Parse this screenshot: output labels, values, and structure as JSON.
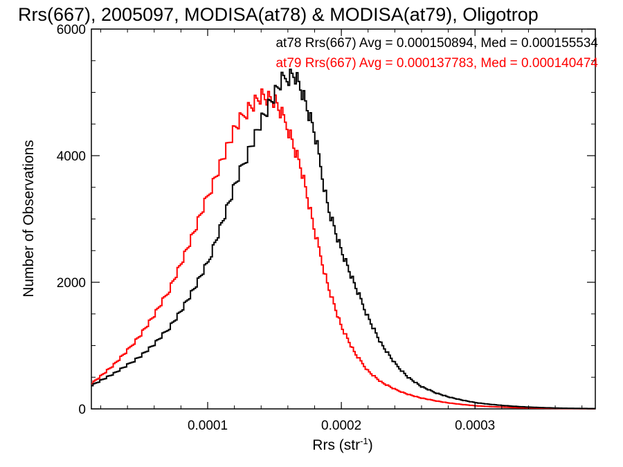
{
  "chart_data": {
    "type": "histogram",
    "title": "Rrs(667), 2005097, MODISA(at78) & MODISA(at79), Oligotrop",
    "xlabel": "Rrs (str",
    "xlabel_sup": "-1",
    "xlabel_close": ")",
    "ylabel": "Number of Observations",
    "xlim": [
      1.3e-05,
      0.00039
    ],
    "ylim": [
      0,
      6000
    ],
    "xticks": [
      {
        "value": 0.0001,
        "label": "0.0001"
      },
      {
        "value": 0.0002,
        "label": "0.0002"
      },
      {
        "value": 0.0003,
        "label": "0.0003"
      }
    ],
    "yticks": [
      {
        "value": 0,
        "label": "0"
      },
      {
        "value": 2000,
        "label": "2000"
      },
      {
        "value": 4000,
        "label": "4000"
      },
      {
        "value": 6000,
        "label": "6000"
      }
    ],
    "grid": false,
    "annotations": [
      {
        "text": "at78 Rrs(667) Avg = 0.000150894, Med = 0.000155534",
        "color": "#000000"
      },
      {
        "text": "at79 Rrs(667) Avg = 0.000137783, Med = 0.000140474",
        "color": "#ff0000"
      }
    ],
    "series": [
      {
        "color": "#000000",
        "x": [
          1.3e-05,
          2e-05,
          3e-05,
          4e-05,
          5e-05,
          6e-05,
          7e-05,
          8e-05,
          9e-05,
          0.0001,
          0.00011,
          0.00012,
          0.00013,
          0.00014,
          0.00015,
          0.000155,
          0.00016,
          0.000165,
          0.00017,
          0.00018,
          0.00019,
          0.0002,
          0.00021,
          0.00022,
          0.00023,
          0.00024,
          0.00025,
          0.00026,
          0.00027,
          0.00028,
          0.00029,
          0.0003,
          0.00031,
          0.00032,
          0.00033,
          0.00034,
          0.00035,
          0.00036,
          0.00037,
          0.00038,
          0.00039
        ],
        "y": [
          370,
          450,
          560,
          690,
          840,
          1020,
          1250,
          1550,
          1900,
          2300,
          2900,
          3500,
          4050,
          4550,
          4950,
          5150,
          5250,
          5300,
          5050,
          4350,
          3200,
          2500,
          1950,
          1450,
          1020,
          720,
          500,
          350,
          260,
          190,
          140,
          100,
          75,
          55,
          40,
          28,
          20,
          14,
          10,
          7,
          5
        ]
      },
      {
        "color": "#ff0000",
        "x": [
          1.3e-05,
          2e-05,
          3e-05,
          4e-05,
          5e-05,
          6e-05,
          7e-05,
          8e-05,
          9e-05,
          0.0001,
          0.00011,
          0.00012,
          0.00013,
          0.00014,
          0.00015,
          0.00016,
          0.00017,
          0.00018,
          0.00019,
          0.0002,
          0.00021,
          0.00022,
          0.00023,
          0.00024,
          0.00025,
          0.00026,
          0.00027,
          0.00028,
          0.00029,
          0.0003,
          0.00031,
          0.00032,
          0.00033,
          0.00034,
          0.00035,
          0.00036,
          0.00037,
          0.00038,
          0.00039
        ],
        "y": [
          400,
          520,
          700,
          920,
          1180,
          1480,
          1830,
          2300,
          2800,
          3350,
          3900,
          4400,
          4750,
          4950,
          4850,
          4450,
          3800,
          2800,
          1950,
          1300,
          880,
          600,
          420,
          310,
          230,
          170,
          130,
          95,
          70,
          50,
          38,
          28,
          20,
          15,
          11,
          8,
          6,
          4,
          3
        ]
      }
    ]
  }
}
